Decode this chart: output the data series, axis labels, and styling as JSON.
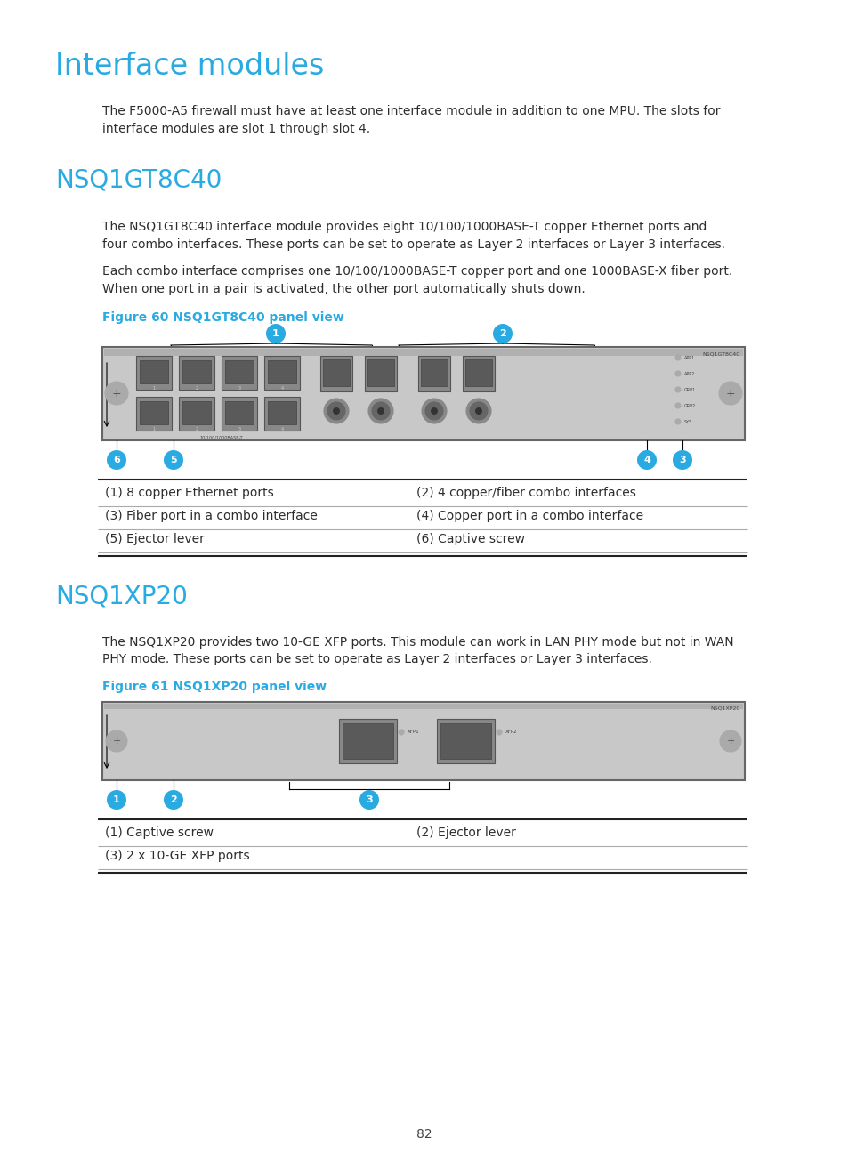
{
  "title": "Interface modules",
  "title_color": "#29ABE2",
  "cyan_color": "#29ABE2",
  "background_color": "#ffffff",
  "body_color": "#2d2d2d",
  "section1_heading": "NSQ1GT8C40",
  "section1_para1": "The NSQ1GT8C40 interface module provides eight 10/100/1000BASE-T copper Ethernet ports and\nfour combo interfaces. These ports can be set to operate as Layer 2 interfaces or Layer 3 interfaces.",
  "section1_para2": "Each combo interface comprises one 10/100/1000BASE-T copper port and one 1000BASE-X fiber port.\nWhen one port in a pair is activated, the other port automatically shuts down.",
  "figure1_label": "Figure 60 NSQ1GT8C40 panel view",
  "table1": [
    [
      "(1) 8 copper Ethernet ports",
      "(2) 4 copper/fiber combo interfaces"
    ],
    [
      "(3) Fiber port in a combo interface",
      "(4) Copper port in a combo interface"
    ],
    [
      "(5) Ejector lever",
      "(6) Captive screw"
    ]
  ],
  "section2_heading": "NSQ1XP20",
  "section2_para1": "The NSQ1XP20 provides two 10-GE XFP ports. This module can work in LAN PHY mode but not in WAN\nPHY mode. These ports can be set to operate as Layer 2 interfaces or Layer 3 interfaces.",
  "figure2_label": "Figure 61 NSQ1XP20 panel view",
  "table2": [
    [
      "(1) Captive screw",
      "(2) Ejector lever"
    ],
    [
      "(3) 2 x 10-GE XFP ports",
      ""
    ]
  ],
  "page_number": "82",
  "intro_text": "The F5000-A5 firewall must have at least one interface module in addition to one MPU. The slots for\ninterface modules are slot 1 through slot 4."
}
